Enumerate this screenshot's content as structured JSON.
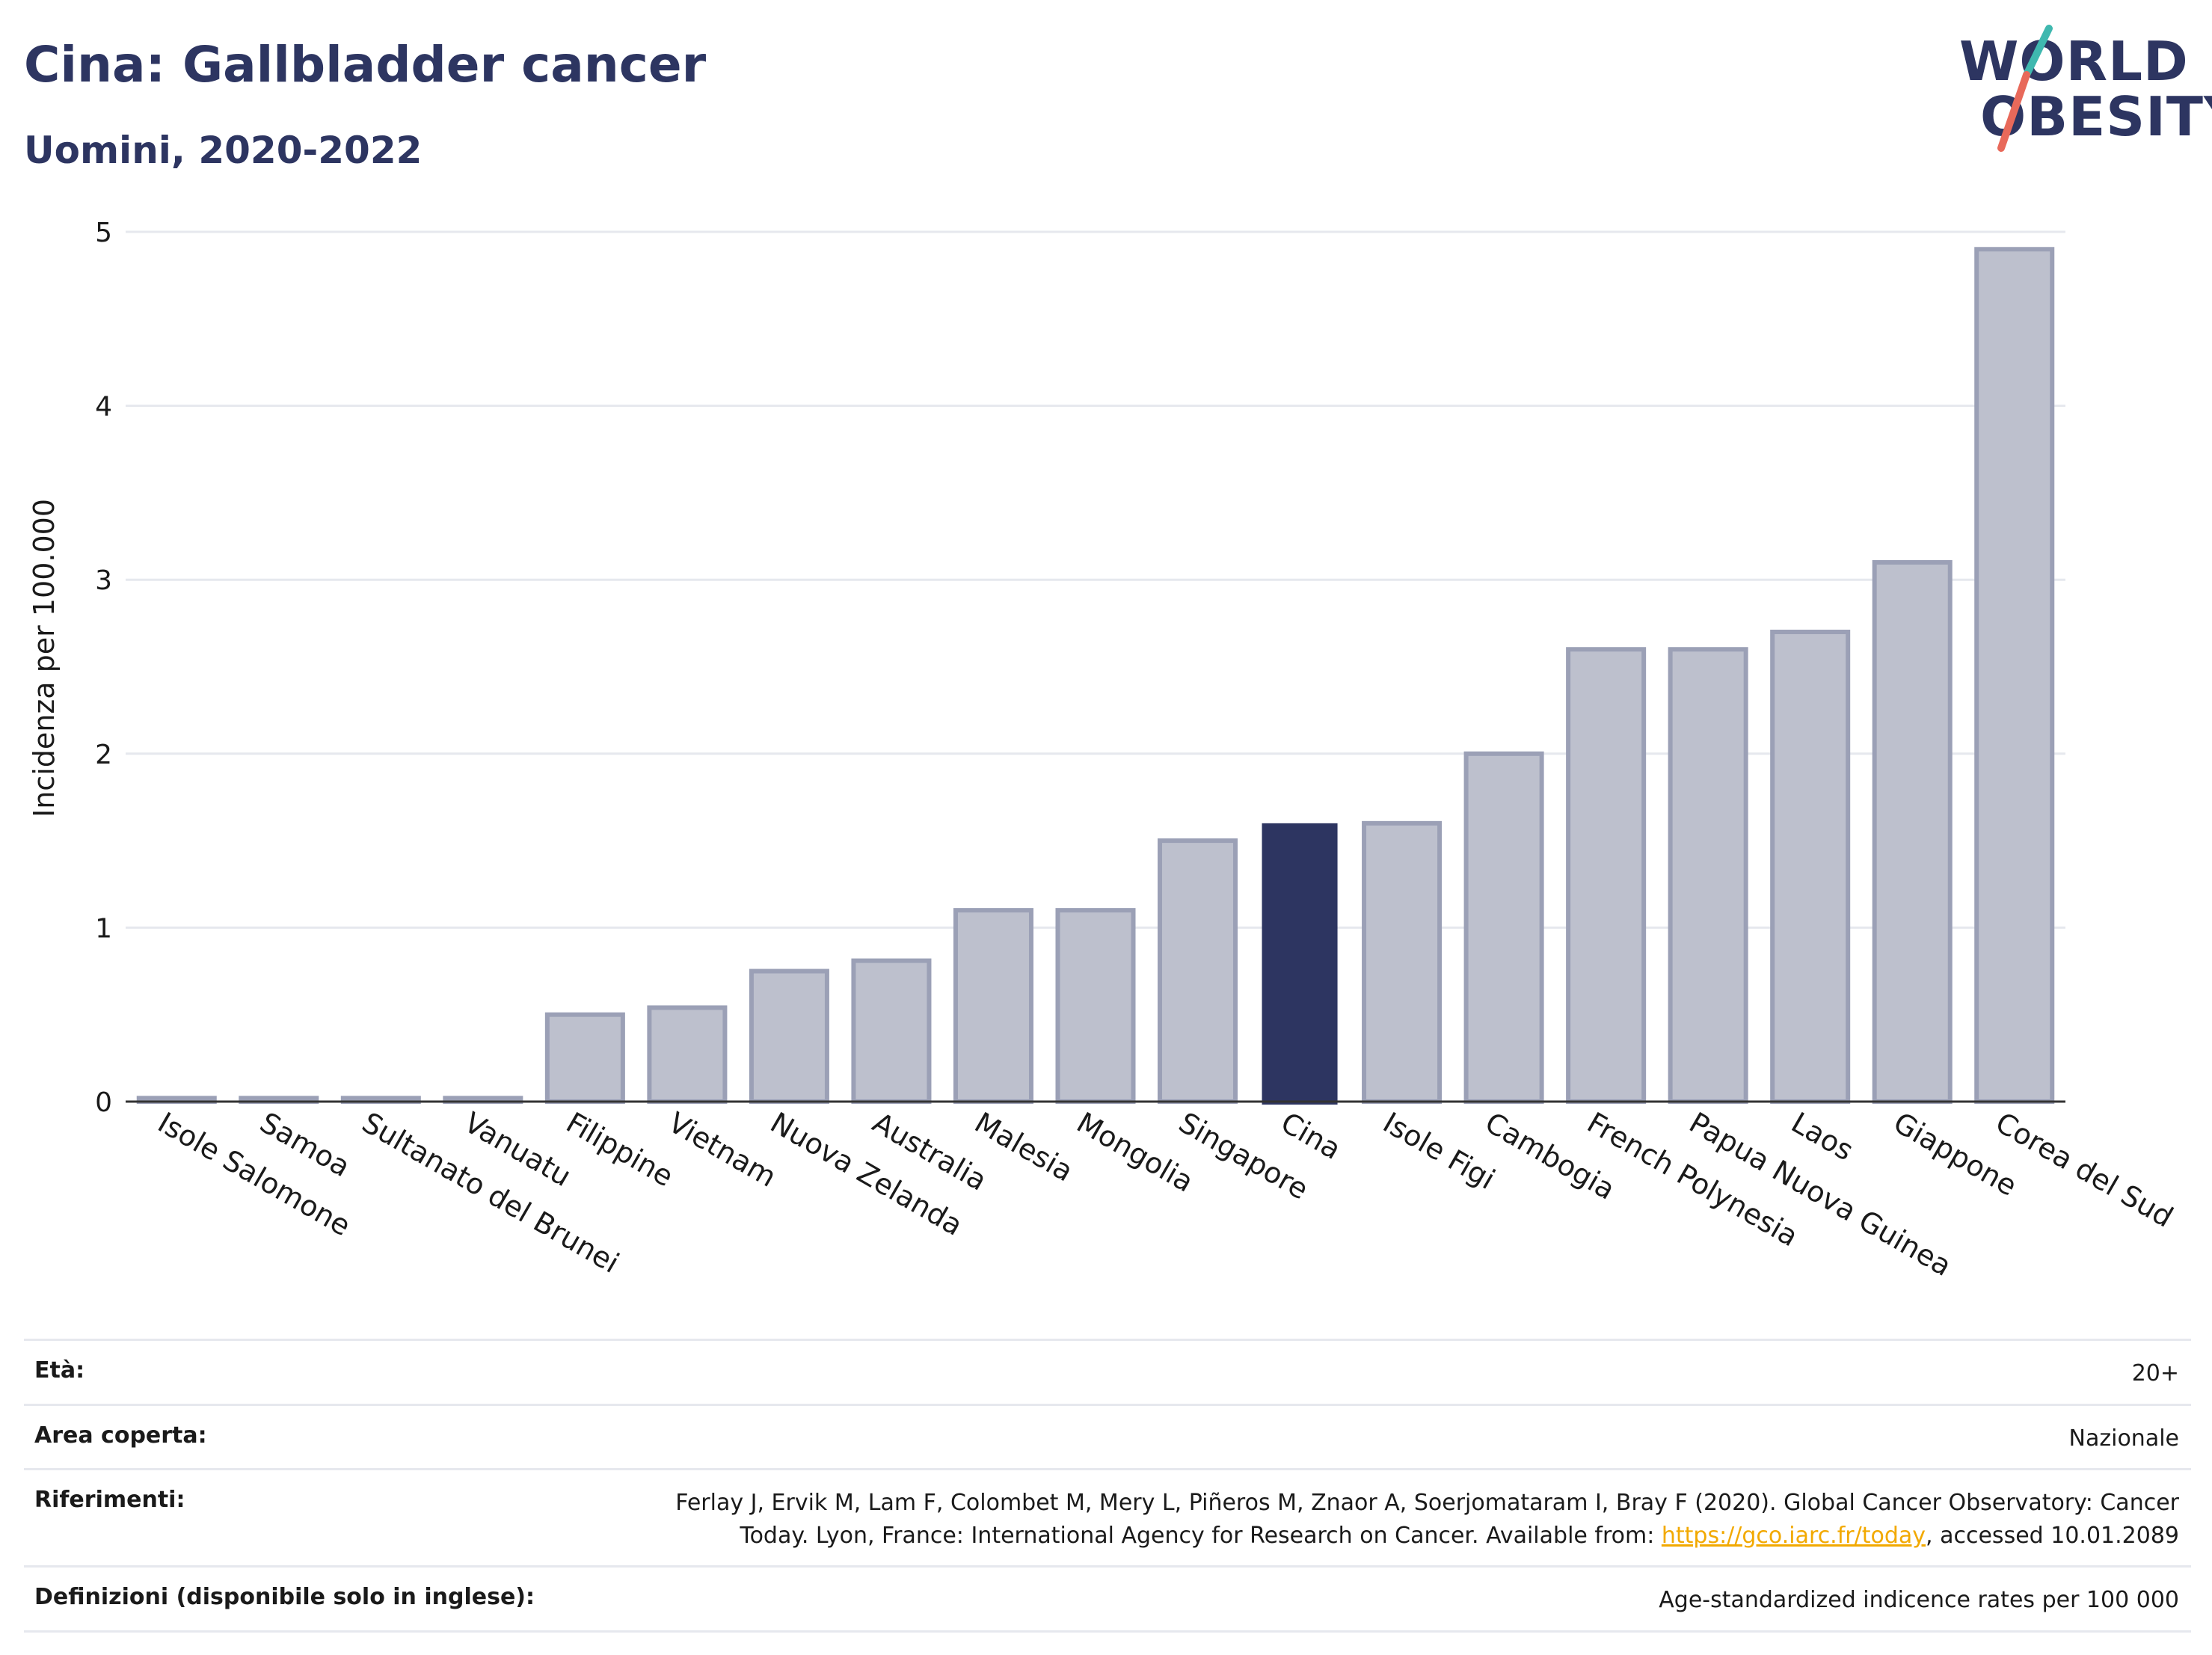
{
  "header": {
    "title": "Cina: Gallbladder cancer",
    "subtitle": "Uomini, 2020-2022"
  },
  "logo": {
    "line1": "WORLD",
    "line2": "OBESITY"
  },
  "colors": {
    "highlight": "#2d3561",
    "bar": "#bdc0cd",
    "bar_border": "#9ba0b6",
    "text": "#2d3561",
    "slash_teal": "#3fb8af",
    "slash_red": "#e8695a"
  },
  "chart_data": {
    "type": "bar",
    "title": "Cina: Gallbladder cancer",
    "subtitle": "Uomini, 2020-2022",
    "ylabel": "Incidenza per 100.000",
    "xlabel": "",
    "ylim": [
      0,
      5
    ],
    "yticks": [
      0,
      1,
      2,
      3,
      4,
      5
    ],
    "grid": true,
    "highlight": "Cina",
    "categories": [
      "Isole Salomone",
      "Samoa",
      "Sultanato del Brunei",
      "Vanuatu",
      "Filippine",
      "Vietnam",
      "Nuova Zelanda",
      "Australia",
      "Malesia",
      "Mongolia",
      "Singapore",
      "Cina",
      "Isole Figi",
      "Cambogia",
      "French Polynesia",
      "Papua Nuova Guinea",
      "Laos",
      "Giappone",
      "Corea del Sud"
    ],
    "values": [
      0.02,
      0.02,
      0.02,
      0.02,
      0.5,
      0.54,
      0.75,
      0.81,
      1.1,
      1.1,
      1.5,
      1.6,
      1.6,
      2.0,
      2.6,
      2.6,
      2.7,
      3.1,
      4.9
    ]
  },
  "footer": {
    "age": {
      "label": "Età:",
      "value": "20+"
    },
    "area": {
      "label": "Area coperta:",
      "value": "Nazionale"
    },
    "refs": {
      "label": "Riferimenti:",
      "line1": "Ferlay J, Ervik M, Lam F, Colombet M, Mery L, Piñeros M, Znaor A, Soerjomataram I, Bray F (2020). Global Cancer Observatory: Cancer",
      "line2_pre": "Today. Lyon, France: International Agency for Research on Cancer. Available from: ",
      "link": "https://gco.iarc.fr/today",
      "line2_post": ", accessed 10.01.2089"
    },
    "defs": {
      "label": "Definizioni (disponibile solo in inglese):",
      "value": "Age-standardized indicence rates per 100 000"
    }
  }
}
